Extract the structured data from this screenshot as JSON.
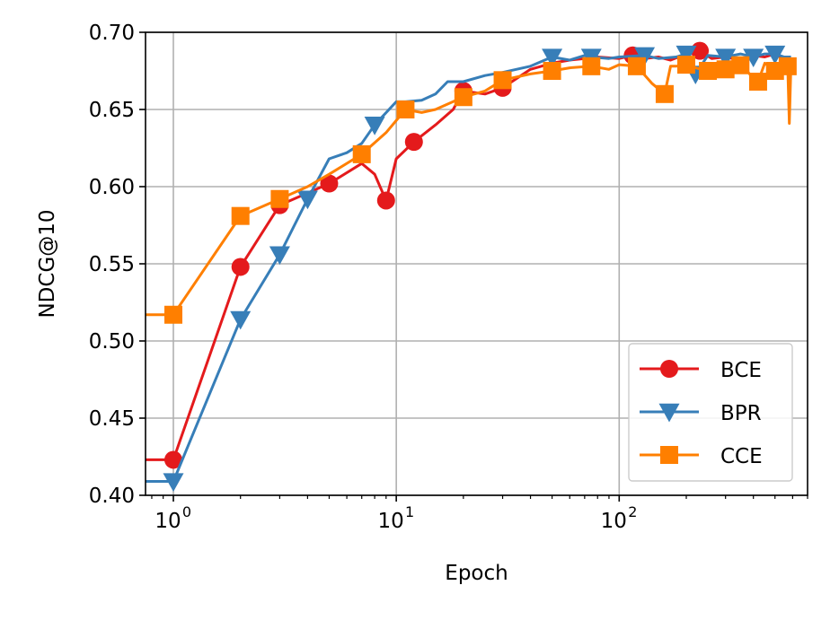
{
  "chart_data": {
    "type": "line",
    "xlabel": "Epoch",
    "ylabel": "NDCG@10",
    "xscale": "log",
    "xlim": [
      0.75,
      700
    ],
    "ylim": [
      0.4,
      0.7
    ],
    "xticks": [
      {
        "value": 1,
        "base": "10",
        "exp": "0"
      },
      {
        "value": 10,
        "base": "10",
        "exp": "1"
      },
      {
        "value": 100,
        "base": "10",
        "exp": "2"
      }
    ],
    "yticks": [
      0.4,
      0.45,
      0.5,
      0.55,
      0.6,
      0.65,
      0.7
    ],
    "ytick_labels": [
      "0.40",
      "0.45",
      "0.50",
      "0.55",
      "0.60",
      "0.65",
      "0.70"
    ],
    "grid": true,
    "legend_position": "lower-right",
    "series": [
      {
        "name": "BCE",
        "color": "#e41a1c",
        "marker": "circle",
        "x": [
          0.75,
          1,
          2,
          3,
          5,
          7,
          8,
          9,
          10,
          12,
          15,
          18,
          20,
          25,
          30,
          40,
          50,
          60,
          70,
          80,
          100,
          115,
          130,
          150,
          170,
          200,
          230,
          260,
          300,
          350,
          400,
          450,
          500,
          550,
          590
        ],
        "y": [
          0.423,
          0.423,
          0.548,
          0.588,
          0.602,
          0.615,
          0.608,
          0.591,
          0.618,
          0.629,
          0.64,
          0.65,
          0.662,
          0.66,
          0.664,
          0.676,
          0.68,
          0.682,
          0.683,
          0.684,
          0.683,
          0.685,
          0.683,
          0.684,
          0.682,
          0.686,
          0.688,
          0.683,
          0.684,
          0.682,
          0.685,
          0.684,
          0.686,
          0.683,
          0.683
        ],
        "markers_x": [
          1,
          2,
          3,
          5,
          9,
          12,
          20,
          30,
          115,
          230
        ]
      },
      {
        "name": "BPR",
        "color": "#377eb8",
        "marker": "triangle-down",
        "x": [
          0.75,
          1,
          2,
          3,
          4,
          5,
          6,
          7,
          8,
          10,
          11,
          13,
          15,
          17,
          20,
          25,
          30,
          40,
          50,
          60,
          70,
          75,
          90,
          100,
          130,
          150,
          180,
          200,
          220,
          250,
          300,
          350,
          400,
          450,
          500,
          550,
          590
        ],
        "y": [
          0.409,
          0.409,
          0.514,
          0.556,
          0.592,
          0.618,
          0.622,
          0.628,
          0.64,
          0.655,
          0.655,
          0.656,
          0.66,
          0.668,
          0.668,
          0.672,
          0.674,
          0.678,
          0.684,
          0.682,
          0.685,
          0.684,
          0.683,
          0.684,
          0.685,
          0.683,
          0.684,
          0.686,
          0.673,
          0.685,
          0.684,
          0.686,
          0.684,
          0.686,
          0.686,
          0.684,
          0.684
        ],
        "markers_x": [
          1,
          2,
          3,
          4,
          8,
          50,
          75,
          130,
          200,
          220,
          300,
          400,
          500
        ]
      },
      {
        "name": "CCE",
        "color": "#ff7f00",
        "marker": "square",
        "x": [
          0.75,
          1,
          2,
          3,
          4,
          5,
          7,
          9,
          11,
          13,
          15,
          20,
          25,
          30,
          40,
          50,
          60,
          75,
          90,
          100,
          120,
          140,
          160,
          170,
          180,
          200,
          220,
          250,
          280,
          300,
          330,
          360,
          400,
          420,
          450,
          500,
          540,
          570,
          580,
          590
        ],
        "y": [
          0.517,
          0.517,
          0.581,
          0.592,
          0.6,
          0.608,
          0.621,
          0.635,
          0.65,
          0.648,
          0.65,
          0.658,
          0.662,
          0.669,
          0.673,
          0.675,
          0.677,
          0.678,
          0.676,
          0.679,
          0.678,
          0.667,
          0.66,
          0.678,
          0.678,
          0.679,
          0.677,
          0.675,
          0.679,
          0.676,
          0.68,
          0.678,
          0.67,
          0.668,
          0.68,
          0.675,
          0.68,
          0.678,
          0.641,
          0.681
        ],
        "markers_x": [
          1,
          2,
          3,
          7,
          11,
          20,
          30,
          50,
          75,
          120,
          160,
          200,
          250,
          300,
          350,
          420,
          500,
          570
        ]
      }
    ]
  }
}
